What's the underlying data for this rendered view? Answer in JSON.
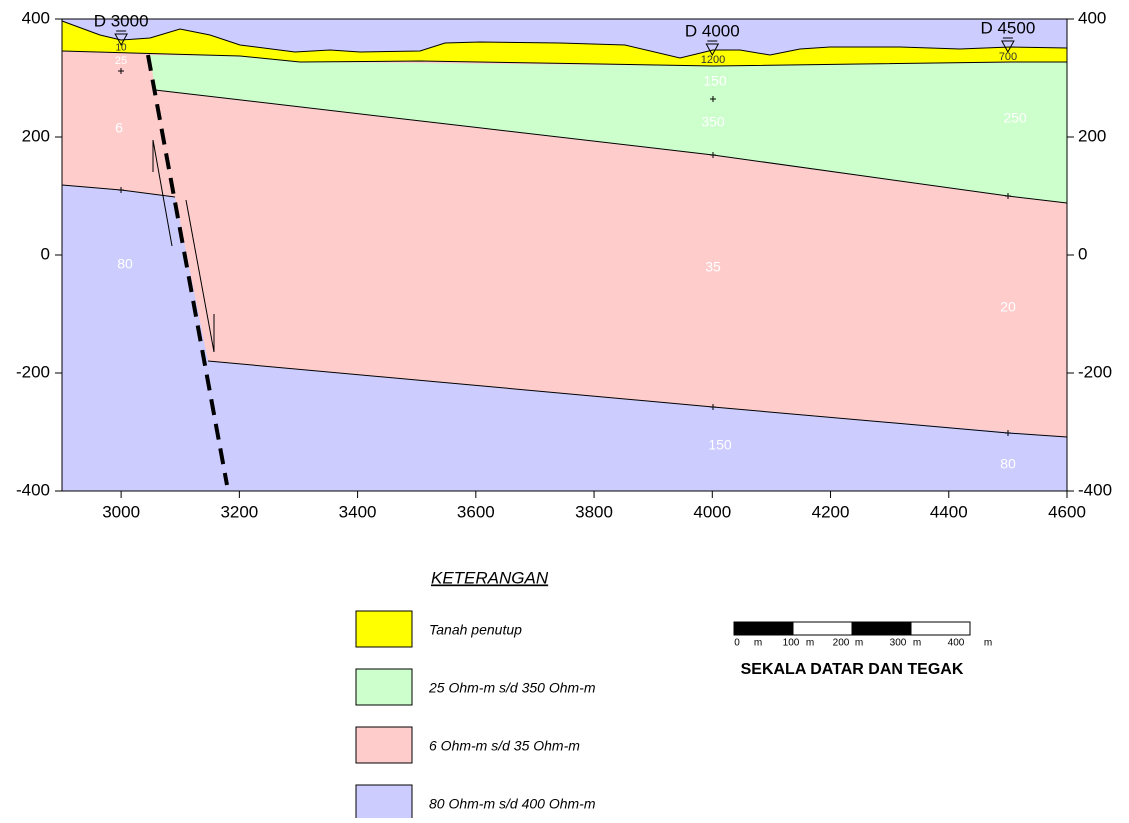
{
  "axes": {
    "xlim": [
      2900,
      4600
    ],
    "ylim": [
      -400,
      400
    ],
    "xticks": [
      3000,
      3200,
      3400,
      3600,
      3800,
      4000,
      4200,
      4400,
      4600
    ],
    "yticks": [
      400,
      200,
      0,
      -200,
      -400
    ]
  },
  "stations": [
    {
      "label": "D 3000",
      "x": 3000
    },
    {
      "label": "D 4000",
      "x": 4000
    },
    {
      "label": "D 4500",
      "x": 4500
    }
  ],
  "resistivity_labels": [
    "10",
    "25",
    "6",
    "80",
    "1200",
    "150",
    "350",
    "35",
    "150",
    "700",
    "250",
    "20",
    "80"
  ],
  "legend": {
    "title": "KETERANGAN",
    "items": [
      {
        "label": "Tanah penutup",
        "color": "#ffff00"
      },
      {
        "label": "25 Ohm-m s/d 350 Ohm-m",
        "color": "#ccffcc"
      },
      {
        "label": "6 Ohm-m s/d 35 Ohm-m",
        "color": "#ffcccc"
      },
      {
        "label": "80 Ohm-m s/d 400 Ohm-m",
        "color": "#ccccff"
      }
    ]
  },
  "scale": {
    "labels": [
      "0",
      "m",
      "100",
      "m",
      "200",
      "m",
      "300",
      "m",
      "400",
      "m"
    ],
    "title": "SEKALA DATAR DAN TEGAK"
  }
}
